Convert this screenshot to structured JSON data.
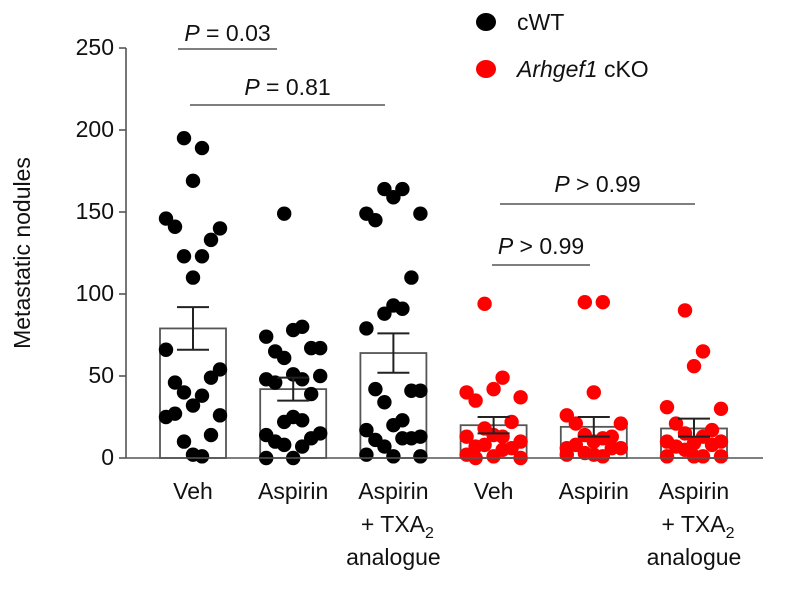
{
  "chart_data": {
    "type": "bar",
    "subtype": "bar-with-scatter-and-sem",
    "title": "",
    "xlabel": "",
    "ylabel": "Metastatic nodules",
    "ylim": [
      0,
      250
    ],
    "yticks": [
      0,
      50,
      100,
      150,
      200,
      250
    ],
    "grid": false,
    "legend": {
      "placement": "top-right",
      "entries": [
        {
          "label_italic": "",
          "label": "cWT",
          "color": "#000000"
        },
        {
          "label_italic": "Arhgef1",
          "label": " cKO",
          "color": "#ff0000"
        }
      ]
    },
    "categories": [
      {
        "lines": [
          "Veh"
        ],
        "group": "cWT"
      },
      {
        "lines": [
          "Aspirin"
        ],
        "group": "cWT"
      },
      {
        "lines": [
          "Aspirin",
          "+ TXA",
          "analogue"
        ],
        "subscript": "2",
        "group": "cWT"
      },
      {
        "lines": [
          "Veh"
        ],
        "group": "Arhgef1 cKO"
      },
      {
        "lines": [
          "Aspirin"
        ],
        "group": "Arhgef1 cKO"
      },
      {
        "lines": [
          "Aspirin",
          "+ TXA",
          "analogue"
        ],
        "subscript": "2",
        "group": "Arhgef1 cKO"
      }
    ],
    "series": [
      {
        "name": "cWT",
        "color": "#000000",
        "bars": [
          {
            "mean": 79,
            "sem_low": 66,
            "sem_high": 92,
            "points": [
              195,
              189,
              169,
              146,
              140,
              141,
              133,
              123,
              123,
              110,
              66,
              54,
              46,
              49,
              40,
              38,
              32,
              25,
              26,
              27,
              14,
              10,
              1,
              2
            ]
          },
          {
            "mean": 42,
            "sem_low": 35,
            "sem_high": 49,
            "points": [
              149,
              80,
              78,
              74,
              67,
              65,
              67,
              61,
              48,
              51,
              48,
              50,
              46,
              39,
              22,
              23,
              25,
              14,
              15,
              10,
              12,
              8,
              7,
              0,
              0
            ]
          },
          {
            "mean": 64,
            "sem_low": 52,
            "sem_high": 76,
            "points": [
              164,
              164,
              159,
              149,
              149,
              145,
              110,
              88,
              91,
              93,
              79,
              41,
              42,
              41,
              34,
              23,
              20,
              17,
              13,
              11,
              12,
              7,
              12,
              1,
              2,
              1
            ]
          }
        ]
      },
      {
        "name": "Arhgef1 cKO",
        "color": "#ff0000",
        "bars": [
          {
            "mean": 20,
            "sem_low": 15,
            "sem_high": 25,
            "points": [
              94,
              49,
              42,
              40,
              37,
              35,
              22,
              18,
              13,
              14,
              13,
              10,
              7,
              6,
              8,
              5,
              1,
              2,
              0,
              0
            ]
          },
          {
            "mean": 19,
            "sem_low": 13,
            "sem_high": 25,
            "points": [
              95,
              95,
              40,
              26,
              21,
              21,
              13,
              14,
              12,
              10,
              6,
              6,
              8,
              6,
              3,
              1,
              2,
              2
            ]
          },
          {
            "mean": 18,
            "sem_low": 13,
            "sem_high": 24,
            "points": [
              90,
              65,
              56,
              31,
              30,
              21,
              17,
              15,
              13,
              9,
              10,
              10,
              7,
              8,
              5,
              1,
              1,
              1,
              1
            ]
          }
        ]
      }
    ],
    "annotations": [
      {
        "text": "P = 0.03",
        "italic_prefix": "P",
        "rest": " = 0.03",
        "from": 0,
        "to": 0,
        "span": [
          0,
          1
        ],
        "level": 1
      },
      {
        "text": "P = 0.81",
        "italic_prefix": "P",
        "rest": " = 0.81",
        "span": [
          0,
          2
        ],
        "level": 2
      },
      {
        "text": "P > 0.99",
        "italic_prefix": "P",
        "rest": " > 0.99",
        "span": [
          3,
          5
        ],
        "level": 3
      },
      {
        "text": "P > 0.99",
        "italic_prefix": "P",
        "rest": " > 0.99",
        "span": [
          3,
          4
        ],
        "level": 4
      }
    ]
  }
}
